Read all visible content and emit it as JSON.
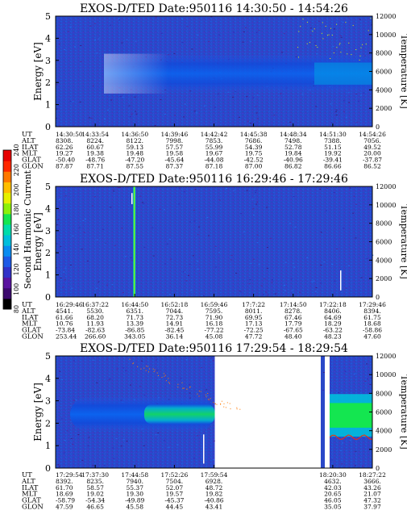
{
  "colorbar": {
    "label": "Second Harmonic Current",
    "ticks": [
      "80",
      "100",
      "120",
      "140",
      "160",
      "180",
      "200",
      "220",
      "240"
    ],
    "colors": [
      "#000000",
      "#3c0a6e",
      "#5a14a0",
      "#3232c8",
      "#1e5ae6",
      "#0a8cf0",
      "#00bedc",
      "#00dcaa",
      "#14e650",
      "#8cf00a",
      "#e6f000",
      "#ffbe00",
      "#ff7800",
      "#ff2800",
      "#e60000"
    ]
  },
  "panels": [
    {
      "title": "EXOS-D/TED   Date:950116   14:30:50 - 14:54:26",
      "ylabel_left": "Energy [eV]",
      "ylabel_right": "Temperature [K]",
      "time_ticks": [
        "14:30:50",
        "14:33:54",
        "14:36:50",
        "14:39:46",
        "14:42:42",
        "14:45:38",
        "14:48:34",
        "14:51:30",
        "14:54:26"
      ],
      "rows": [
        {
          "name": "UT",
          "values": [
            "14:30:50",
            "14:33:54",
            "14:36:50",
            "14:39:46",
            "14:42:42",
            "14:45:38",
            "14:48:34",
            "14:51:30",
            "14:54:26"
          ]
        },
        {
          "name": "ALT",
          "values": [
            "8308.",
            "8224.",
            "8122.",
            "7998.",
            "7853.",
            "7686.",
            "7498.",
            "7388.",
            "7056."
          ]
        },
        {
          "name": "ILAT",
          "values": [
            "62.26",
            "60.67",
            "59.13",
            "57.57",
            "55.99",
            "54.39",
            "52.78",
            "51.15",
            "49.52"
          ]
        },
        {
          "name": "MLT",
          "values": [
            "19.27",
            "19.38",
            "19.48",
            "19.58",
            "19.67",
            "19.75",
            "19.84",
            "19.92",
            "20.00"
          ]
        },
        {
          "name": "GLAT",
          "values": [
            "-50.40",
            "-48.76",
            "-47.20",
            "-45.64",
            "-44.08",
            "-42.52",
            "-40.96",
            "-39.41",
            "-37.87"
          ]
        },
        {
          "name": "GLON",
          "values": [
            "87.87",
            "87.71",
            "87.55",
            "87.37",
            "87.18",
            "87.00",
            "86.82",
            "86.66",
            "86.52"
          ]
        }
      ]
    },
    {
      "title": "EXOS-D/TED   Date:950116   16:29:46 - 17:29:46",
      "ylabel_left": "Energy [eV]",
      "ylabel_right": "Temperature [K]",
      "time_ticks": [
        "16:29:46",
        "16:37:22",
        "16:44:50",
        "16:52:18",
        "16:59:46",
        "17:7:22",
        "17:14:50",
        "17:22:18",
        "17:29:46"
      ],
      "rows": [
        {
          "name": "UT",
          "values": [
            "16:29:46",
            "16:37:22",
            "16:44:50",
            "16:52:18",
            "16:59:46",
            "17:7:22",
            "17:14:50",
            "17:22:18",
            "17:29:46"
          ]
        },
        {
          "name": "ALT",
          "values": [
            "4541.",
            "5530.",
            "6351.",
            "7044.",
            "7595.",
            "8011.",
            "8278.",
            "8406.",
            "8394."
          ]
        },
        {
          "name": "ILAT",
          "values": [
            "61.66",
            "68.20",
            "71.73",
            "72.73",
            "71.90",
            "69.95",
            "67.46",
            "64.69",
            "61.75"
          ]
        },
        {
          "name": "MLT",
          "values": [
            "10.76",
            "11.93",
            "13.39",
            "14.91",
            "16.18",
            "17.13",
            "17.79",
            "18.29",
            "18.68"
          ]
        },
        {
          "name": "GLAT",
          "values": [
            "-73.84",
            "-82.63",
            "-86.85",
            "-82.45",
            "-77.22",
            "-72.25",
            "-67.65",
            "-63.22",
            "-58.86"
          ]
        },
        {
          "name": "GLON",
          "values": [
            "253.44",
            "266.60",
            "343.05",
            "36.14",
            "45.08",
            "47.72",
            "48.40",
            "48.23",
            "47.60"
          ]
        }
      ]
    },
    {
      "title": "EXOS-D/TED   Date:950116   17:29:54 - 18:29:54",
      "ylabel_left": "Energy [eV]",
      "ylabel_right": "Temperature [K]",
      "time_ticks": [
        "17:29:54",
        "17:37:30",
        "17:44:58",
        "17:52:26",
        "17:59:54",
        "",
        "",
        "18:20:30",
        "18:27:22"
      ],
      "rows": [
        {
          "name": "UT",
          "values": [
            "17:29:54",
            "17:37:30",
            "17:44:58",
            "17:52:26",
            "17:59:54",
            "",
            "",
            "18:20:30",
            "18:27:22"
          ]
        },
        {
          "name": "ALT",
          "values": [
            "8392.",
            "8235.",
            "7940.",
            "7504.",
            "6928.",
            "",
            "",
            "4632.",
            "3666."
          ]
        },
        {
          "name": "ILAT",
          "values": [
            "61.70",
            "58.57",
            "55.37",
            "52.07",
            "48.72",
            "",
            "",
            "42.03",
            "43.26"
          ]
        },
        {
          "name": "MLT",
          "values": [
            "18.69",
            "19.02",
            "19.30",
            "19.57",
            "19.82",
            "",
            "",
            "20.65",
            "21.07"
          ]
        },
        {
          "name": "GLAT",
          "values": [
            "-58.79",
            "-54.34",
            "-49.89",
            "-45.37",
            "-40.86",
            "",
            "",
            "46.05",
            "47.32"
          ]
        },
        {
          "name": "GLON",
          "values": [
            "47.59",
            "46.65",
            "45.58",
            "44.45",
            "43.41",
            "",
            "",
            "35.05",
            "37.97"
          ]
        }
      ]
    }
  ],
  "chart_data": [
    {
      "type": "heatmap",
      "title": "EXOS-D/TED   Date:950116   14:30:50 - 14:54:26",
      "ylabel": "Energy [eV]",
      "y2label": "Temperature [K]",
      "ylim": [
        0,
        5
      ],
      "y2lim": [
        0,
        12000
      ],
      "yticks": [
        0,
        1,
        2,
        3,
        4,
        5
      ],
      "y2ticks": [
        0,
        2000,
        4000,
        6000,
        8000,
        10000,
        12000
      ],
      "x": [
        "14:30:50",
        "14:33:54",
        "14:36:50",
        "14:39:46",
        "14:42:42",
        "14:45:38",
        "14:48:34",
        "14:51:30",
        "14:54:26"
      ],
      "band_energy_eV": 2.4
    },
    {
      "type": "heatmap",
      "title": "EXOS-D/TED   Date:950116   16:29:46 - 17:29:46",
      "ylabel": "Energy [eV]",
      "y2label": "Temperature [K]",
      "ylim": [
        0,
        5
      ],
      "y2lim": [
        0,
        12000
      ],
      "yticks": [
        0,
        1,
        2,
        3,
        4,
        5
      ],
      "y2ticks": [
        0,
        2000,
        4000,
        6000,
        8000,
        10000,
        12000
      ],
      "x": [
        "16:29:46",
        "16:37:22",
        "16:44:50",
        "16:52:18",
        "16:59:46",
        "17:7:22",
        "17:14:50",
        "17:22:18",
        "17:29:46"
      ]
    },
    {
      "type": "heatmap",
      "title": "EXOS-D/TED   Date:950116   17:29:54 - 18:29:54",
      "ylabel": "Energy [eV]",
      "y2label": "Temperature [K]",
      "ylim": [
        0,
        5
      ],
      "y2lim": [
        0,
        12000
      ],
      "yticks": [
        0,
        1,
        2,
        3,
        4,
        5
      ],
      "y2ticks": [
        0,
        2000,
        4000,
        6000,
        8000,
        10000,
        12000
      ],
      "x": [
        "17:29:54",
        "17:37:30",
        "17:44:58",
        "17:52:26",
        "17:59:54",
        "",
        "",
        "18:20:30",
        "18:27:22"
      ],
      "band_energy_eV": 2.4
    }
  ]
}
